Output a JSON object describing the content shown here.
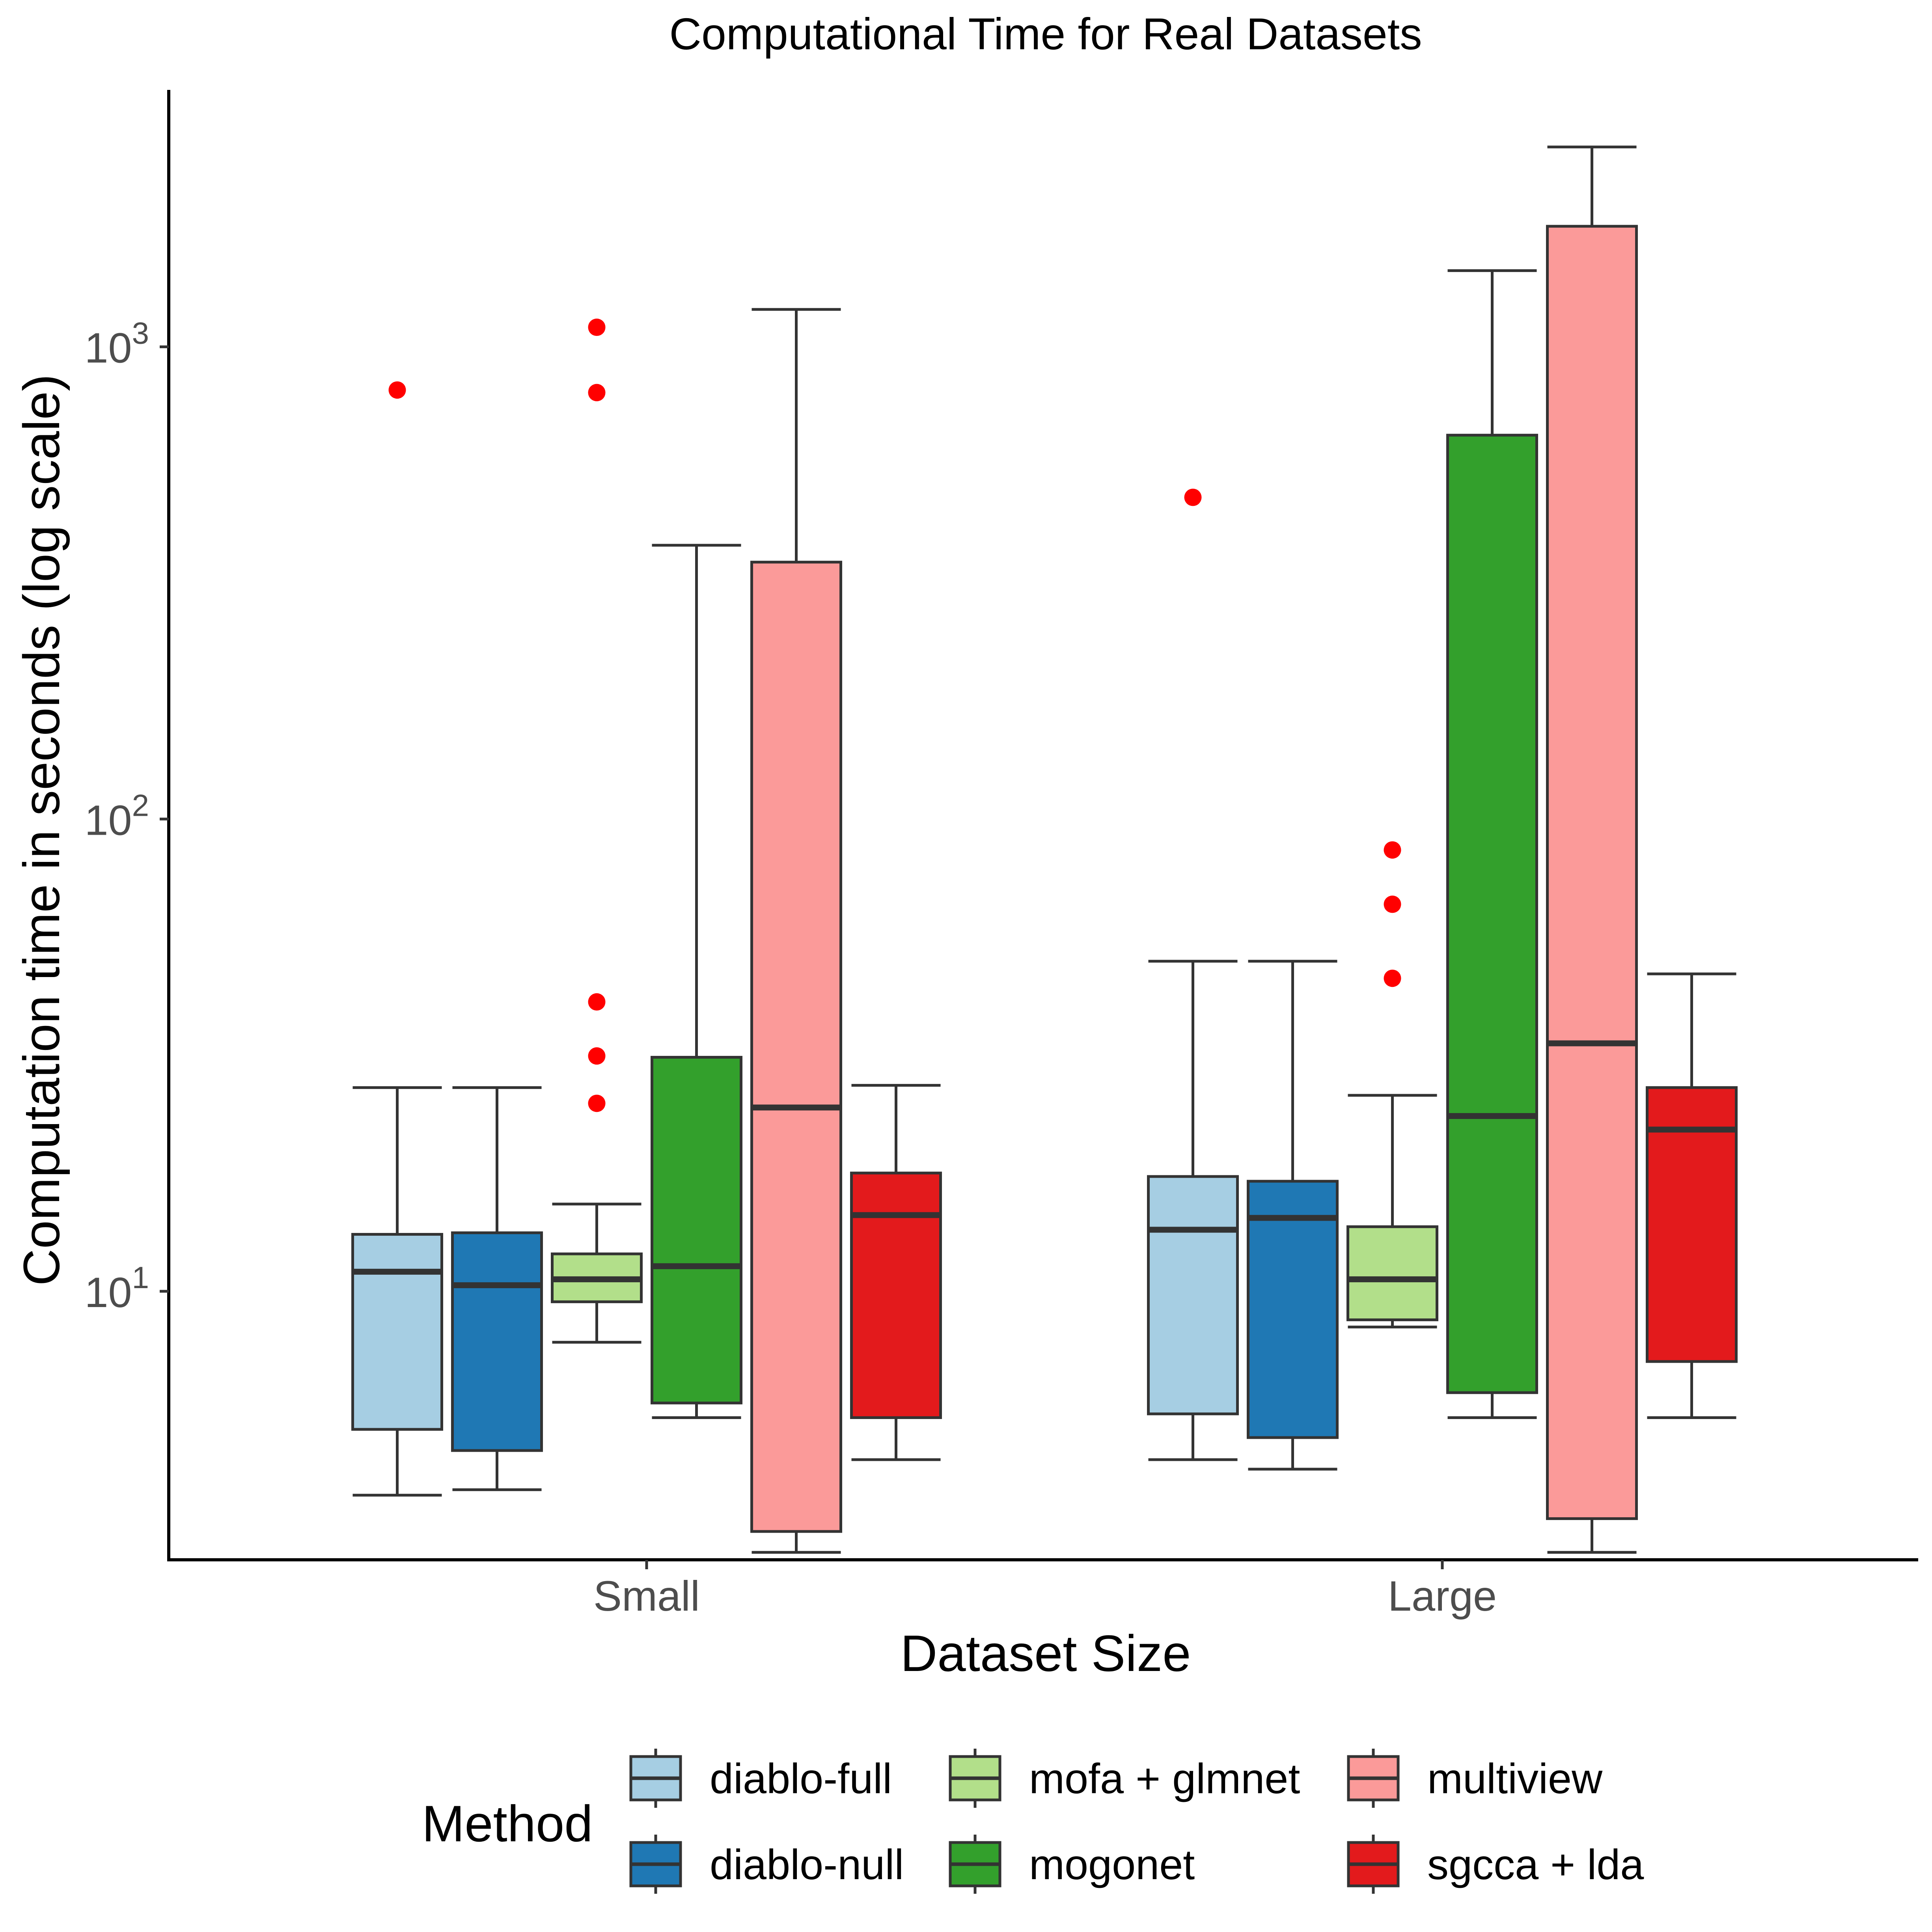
{
  "chart_data": {
    "type": "boxplot",
    "title": "Computational Time for Real Datasets",
    "xlabel": "Dataset Size",
    "ylabel": "Computation time in seconds (log scale)",
    "y_scale": "log10",
    "ylim": [
      2.7,
      3500
    ],
    "y_ticks": [
      {
        "value": 10,
        "base": "10",
        "exp": "1"
      },
      {
        "value": 100,
        "base": "10",
        "exp": "2"
      },
      {
        "value": 1000,
        "base": "10",
        "exp": "3"
      }
    ],
    "categories": [
      "Small",
      "Large"
    ],
    "grid": false,
    "legend": {
      "title": "Method",
      "placement": "bottom",
      "columns": 3
    },
    "outlier_color": "#ff0000",
    "box_edge_color": "#333333",
    "series": [
      {
        "name": "diablo-full",
        "color": "#a6cee3",
        "boxes": [
          {
            "category": "Small",
            "whisker_low": 3.7,
            "q1": 5.1,
            "median": 11,
            "q3": 13.2,
            "whisker_high": 27,
            "outliers": [
              810
            ]
          },
          {
            "category": "Large",
            "whisker_low": 4.4,
            "q1": 5.5,
            "median": 13.5,
            "q3": 17.5,
            "whisker_high": 50,
            "outliers": [
              480
            ]
          }
        ]
      },
      {
        "name": "diablo-null",
        "color": "#1f78b4",
        "boxes": [
          {
            "category": "Small",
            "whisker_low": 3.8,
            "q1": 4.6,
            "median": 10.3,
            "q3": 13.3,
            "whisker_high": 27,
            "outliers": []
          },
          {
            "category": "Large",
            "whisker_low": 4.2,
            "q1": 4.9,
            "median": 14.3,
            "q3": 17.1,
            "whisker_high": 50,
            "outliers": []
          }
        ]
      },
      {
        "name": "mofa + glmnet",
        "color": "#b2df8a",
        "boxes": [
          {
            "category": "Small",
            "whisker_low": 7.8,
            "q1": 9.5,
            "median": 10.6,
            "q3": 12,
            "whisker_high": 15.3,
            "outliers": [
              25,
              31.5,
              41,
              800,
              1100
            ]
          },
          {
            "category": "Large",
            "whisker_low": 8.4,
            "q1": 8.7,
            "median": 10.6,
            "q3": 13.7,
            "whisker_high": 26,
            "outliers": [
              46,
              66,
              86
            ]
          }
        ]
      },
      {
        "name": "mogonet",
        "color": "#33a02c",
        "boxes": [
          {
            "category": "Small",
            "whisker_low": 5.4,
            "q1": 5.8,
            "median": 11.3,
            "q3": 31.3,
            "whisker_high": 380,
            "outliers": []
          },
          {
            "category": "Large",
            "whisker_low": 5.4,
            "q1": 6.1,
            "median": 23.5,
            "q3": 650,
            "whisker_high": 1450,
            "outliers": []
          }
        ]
      },
      {
        "name": "multiview",
        "color": "#fb9a99",
        "boxes": [
          {
            "category": "Small",
            "whisker_low": 2.8,
            "q1": 3.1,
            "median": 24.5,
            "q3": 350,
            "whisker_high": 1200,
            "outliers": []
          },
          {
            "category": "Large",
            "whisker_low": 2.8,
            "q1": 3.3,
            "median": 33.5,
            "q3": 1800,
            "whisker_high": 2650,
            "outliers": []
          }
        ]
      },
      {
        "name": "sgcca + lda",
        "color": "#e31a1c",
        "boxes": [
          {
            "category": "Small",
            "whisker_low": 4.4,
            "q1": 5.4,
            "median": 14.5,
            "q3": 17.8,
            "whisker_high": 27.3,
            "outliers": []
          },
          {
            "category": "Large",
            "whisker_low": 5.4,
            "q1": 7.1,
            "median": 22,
            "q3": 27,
            "whisker_high": 47,
            "outliers": []
          }
        ]
      }
    ]
  }
}
